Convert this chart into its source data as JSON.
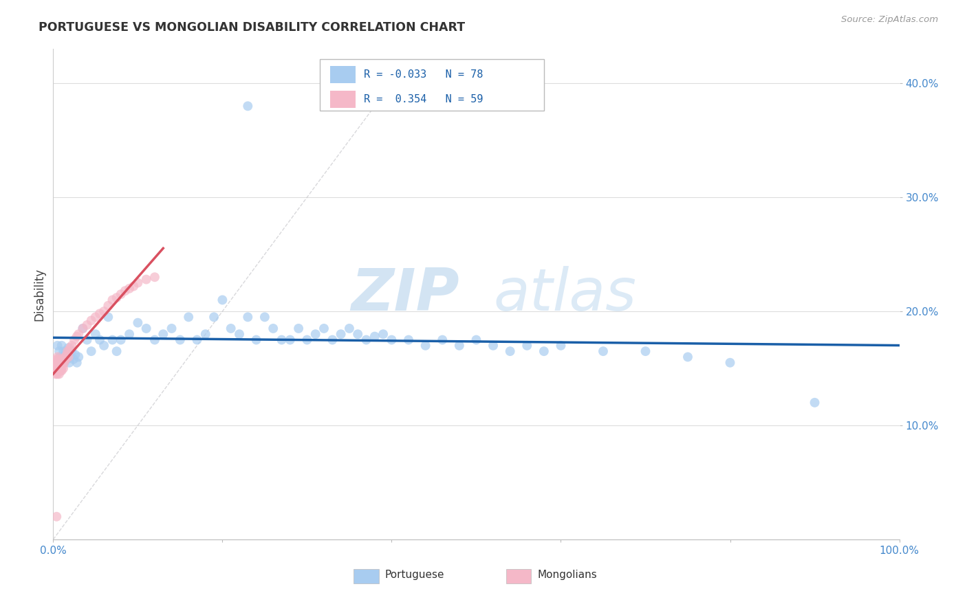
{
  "title": "PORTUGUESE VS MONGOLIAN DISABILITY CORRELATION CHART",
  "source": "Source: ZipAtlas.com",
  "ylabel": "Disability",
  "watermark_zip": "ZIP",
  "watermark_atlas": "atlas",
  "xlim": [
    0.0,
    1.0
  ],
  "ylim": [
    0.0,
    0.43
  ],
  "portuguese_color": "#A8CCF0",
  "mongolian_color": "#F5B8C8",
  "portuguese_line_color": "#1A5FA8",
  "mongolian_line_color": "#D95060",
  "diagonal_color": "#C8C8CC",
  "portuguese_R": -0.033,
  "portuguese_N": 78,
  "mongolian_R": 0.354,
  "mongolian_N": 59,
  "legend_label_portuguese": "Portuguese",
  "legend_label_mongolian": "Mongolians",
  "pt_x": [
    0.005,
    0.007,
    0.008,
    0.009,
    0.01,
    0.011,
    0.012,
    0.013,
    0.014,
    0.015,
    0.016,
    0.017,
    0.018,
    0.019,
    0.02,
    0.022,
    0.024,
    0.026,
    0.028,
    0.03,
    0.035,
    0.04,
    0.045,
    0.05,
    0.055,
    0.06,
    0.065,
    0.07,
    0.075,
    0.08,
    0.09,
    0.1,
    0.11,
    0.12,
    0.13,
    0.14,
    0.15,
    0.16,
    0.17,
    0.18,
    0.19,
    0.2,
    0.21,
    0.22,
    0.23,
    0.24,
    0.25,
    0.26,
    0.27,
    0.28,
    0.29,
    0.3,
    0.31,
    0.32,
    0.33,
    0.34,
    0.35,
    0.36,
    0.37,
    0.38,
    0.39,
    0.4,
    0.42,
    0.44,
    0.46,
    0.48,
    0.5,
    0.52,
    0.54,
    0.56,
    0.58,
    0.6,
    0.65,
    0.7,
    0.75,
    0.8,
    0.9,
    0.23
  ],
  "pt_y": [
    0.17,
    0.165,
    0.16,
    0.155,
    0.17,
    0.16,
    0.165,
    0.155,
    0.16,
    0.165,
    0.158,
    0.162,
    0.168,
    0.155,
    0.16,
    0.165,
    0.158,
    0.162,
    0.155,
    0.16,
    0.185,
    0.175,
    0.165,
    0.18,
    0.175,
    0.17,
    0.195,
    0.175,
    0.165,
    0.175,
    0.18,
    0.19,
    0.185,
    0.175,
    0.18,
    0.185,
    0.175,
    0.195,
    0.175,
    0.18,
    0.195,
    0.21,
    0.185,
    0.18,
    0.195,
    0.175,
    0.195,
    0.185,
    0.175,
    0.175,
    0.185,
    0.175,
    0.18,
    0.185,
    0.175,
    0.18,
    0.185,
    0.18,
    0.175,
    0.178,
    0.18,
    0.175,
    0.175,
    0.17,
    0.175,
    0.17,
    0.175,
    0.17,
    0.165,
    0.17,
    0.165,
    0.17,
    0.165,
    0.165,
    0.16,
    0.155,
    0.12,
    0.38
  ],
  "mn_x": [
    0.001,
    0.002,
    0.002,
    0.003,
    0.003,
    0.003,
    0.004,
    0.004,
    0.004,
    0.005,
    0.005,
    0.005,
    0.005,
    0.005,
    0.006,
    0.006,
    0.006,
    0.007,
    0.007,
    0.007,
    0.008,
    0.008,
    0.009,
    0.009,
    0.01,
    0.01,
    0.011,
    0.011,
    0.012,
    0.012,
    0.013,
    0.014,
    0.015,
    0.016,
    0.017,
    0.018,
    0.019,
    0.02,
    0.022,
    0.025,
    0.028,
    0.03,
    0.035,
    0.04,
    0.045,
    0.05,
    0.055,
    0.06,
    0.065,
    0.07,
    0.075,
    0.08,
    0.085,
    0.09,
    0.095,
    0.1,
    0.11,
    0.12,
    0.004
  ],
  "mn_y": [
    0.155,
    0.15,
    0.155,
    0.145,
    0.15,
    0.155,
    0.148,
    0.152,
    0.158,
    0.145,
    0.148,
    0.152,
    0.155,
    0.16,
    0.148,
    0.152,
    0.158,
    0.145,
    0.15,
    0.155,
    0.148,
    0.155,
    0.148,
    0.155,
    0.148,
    0.155,
    0.152,
    0.158,
    0.15,
    0.157,
    0.155,
    0.16,
    0.158,
    0.162,
    0.165,
    0.16,
    0.165,
    0.168,
    0.17,
    0.175,
    0.178,
    0.18,
    0.185,
    0.188,
    0.192,
    0.195,
    0.198,
    0.2,
    0.205,
    0.21,
    0.212,
    0.215,
    0.218,
    0.22,
    0.222,
    0.225,
    0.228,
    0.23,
    0.02
  ]
}
